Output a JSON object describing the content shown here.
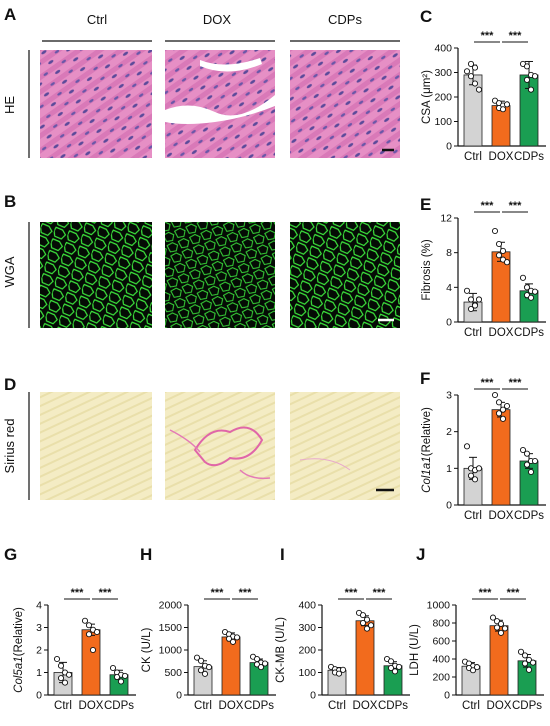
{
  "figure": {
    "panel_letters": {
      "A": "A",
      "B": "B",
      "C": "C",
      "D": "D",
      "E": "E",
      "F": "F",
      "G": "G",
      "H": "H",
      "I": "I",
      "J": "J"
    },
    "group_headers": [
      "Ctrl",
      "DOX",
      "CDPs"
    ],
    "row_labels": {
      "he": "HE",
      "wga": "WGA",
      "sirius": "Sirius red"
    },
    "image_colors": {
      "he_bg": "#e58fc4",
      "he_fiber": "#d673b4",
      "he_nuclei": "#5b4a9a",
      "wga_bg": "#050b05",
      "wga_membrane": "#3de63d",
      "sirius_bg": "#f4ecc4",
      "sirius_fiber": "#e8dca2",
      "sirius_collagen": "#e066a8"
    },
    "bar_colors": {
      "Ctrl": "#d3d3d3",
      "DOX": "#f26b1d",
      "CDPs": "#1a9e52"
    }
  },
  "chart_data": [
    {
      "panel": "C",
      "type": "bar",
      "categories": [
        "Ctrl",
        "DOX",
        "CDPs"
      ],
      "ylabel": "CSA (μm²)",
      "ylim": [
        0,
        400
      ],
      "yticks": [
        0,
        100,
        200,
        300,
        400
      ],
      "values": [
        290,
        165,
        290
      ],
      "errors": [
        40,
        18,
        55
      ],
      "points": [
        [
          305,
          335,
          320,
          285,
          255,
          230
        ],
        [
          185,
          175,
          165,
          155,
          150,
          170
        ],
        [
          335,
          325,
          290,
          270,
          230,
          285
        ]
      ],
      "significance": [
        "***",
        "***"
      ]
    },
    {
      "panel": "E",
      "type": "bar",
      "categories": [
        "Ctrl",
        "DOX",
        "CDPs"
      ],
      "ylabel": "Fibrosis (%)",
      "ylim": [
        0,
        12
      ],
      "yticks": [
        0,
        4,
        8,
        12
      ],
      "values": [
        2.3,
        8.1,
        3.6
      ],
      "errors": [
        1.0,
        1.1,
        0.8
      ],
      "points": [
        [
          3.6,
          2.6,
          2.0,
          1.5,
          1.9,
          2.6
        ],
        [
          10.5,
          9.0,
          8.2,
          7.7,
          7.2,
          6.9
        ],
        [
          5.1,
          4.0,
          3.6,
          3.1,
          2.8,
          3.5
        ]
      ],
      "significance": [
        "***",
        "***"
      ]
    },
    {
      "panel": "F",
      "type": "bar",
      "categories": [
        "Ctrl",
        "DOX",
        "CDPs"
      ],
      "ylabel": "Col1a1(Relative)",
      "ylim": [
        0,
        3
      ],
      "yticks": [
        0,
        1,
        2,
        3
      ],
      "values": [
        1.0,
        2.6,
        1.2
      ],
      "errors": [
        0.3,
        0.2,
        0.2
      ],
      "points": [
        [
          1.6,
          1.0,
          0.95,
          0.8,
          0.7,
          1.0
        ],
        [
          3.0,
          2.8,
          2.6,
          2.5,
          2.35,
          2.7
        ],
        [
          1.5,
          1.4,
          1.2,
          1.1,
          0.9,
          1.2
        ]
      ],
      "significance": [
        "***",
        "***"
      ]
    },
    {
      "panel": "G",
      "type": "bar",
      "categories": [
        "Ctrl",
        "DOX",
        "CDPs"
      ],
      "ylabel": "Col5a1(Relative)",
      "ylim": [
        0,
        4
      ],
      "yticks": [
        0,
        1,
        2,
        3,
        4
      ],
      "values": [
        1.0,
        2.9,
        0.9
      ],
      "errors": [
        0.45,
        0.25,
        0.2
      ],
      "points": [
        [
          1.6,
          1.3,
          1.0,
          0.75,
          0.55,
          0.9
        ],
        [
          3.3,
          3.1,
          2.9,
          2.7,
          2.0,
          2.8
        ],
        [
          1.2,
          1.0,
          0.9,
          0.8,
          0.6,
          0.85
        ]
      ],
      "significance": [
        "***",
        "***"
      ]
    },
    {
      "panel": "H",
      "type": "bar",
      "categories": [
        "Ctrl",
        "DOX",
        "CDPs"
      ],
      "ylabel": "CK (U/L)",
      "ylim": [
        0,
        2000
      ],
      "yticks": [
        0,
        500,
        1000,
        1500,
        2000
      ],
      "values": [
        630,
        1290,
        720
      ],
      "errors": [
        130,
        90,
        80
      ],
      "points": [
        [
          830,
          760,
          650,
          550,
          470,
          620
        ],
        [
          1400,
          1350,
          1300,
          1250,
          1180,
          1280
        ],
        [
          850,
          800,
          720,
          680,
          620,
          700
        ]
      ],
      "significance": [
        "***",
        "***"
      ]
    },
    {
      "panel": "I",
      "type": "bar",
      "categories": [
        "Ctrl",
        "DOX",
        "CDPs"
      ],
      "ylabel": "CK-MB (U/L)",
      "ylim": [
        0,
        400
      ],
      "yticks": [
        0,
        100,
        200,
        300,
        400
      ],
      "values": [
        110,
        330,
        130
      ],
      "errors": [
        12,
        22,
        18
      ],
      "points": [
        [
          125,
          115,
          110,
          100,
          95,
          112
        ],
        [
          365,
          355,
          335,
          320,
          295,
          310
        ],
        [
          160,
          150,
          130,
          120,
          105,
          125
        ]
      ],
      "significance": [
        "***",
        "***"
      ]
    },
    {
      "panel": "J",
      "type": "bar",
      "categories": [
        "Ctrl",
        "DOX",
        "CDPs"
      ],
      "ylabel": "LDH (U/L)",
      "ylim": [
        0,
        1000
      ],
      "yticks": [
        0,
        200,
        400,
        600,
        800,
        1000
      ],
      "values": [
        320,
        770,
        380
      ],
      "errors": [
        40,
        60,
        70
      ],
      "points": [
        [
          370,
          350,
          320,
          300,
          275,
          310
        ],
        [
          860,
          820,
          790,
          750,
          690,
          740
        ],
        [
          480,
          440,
          390,
          350,
          280,
          360
        ]
      ],
      "significance": [
        "***",
        "***"
      ]
    }
  ]
}
